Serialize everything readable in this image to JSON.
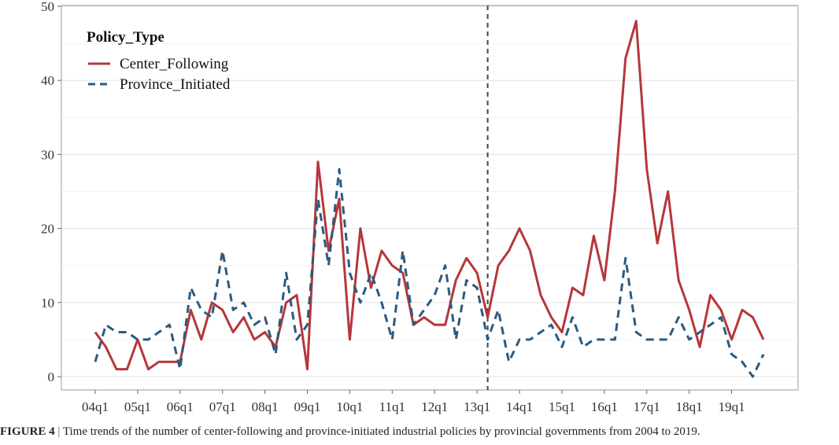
{
  "chart_data": {
    "type": "line",
    "title": "",
    "xlabel": "",
    "ylabel": "",
    "ylim": [
      0,
      50
    ],
    "yticks": [
      0,
      10,
      20,
      30,
      40,
      50
    ],
    "xtick_labels": [
      "04q1",
      "05q1",
      "06q1",
      "07q1",
      "08q1",
      "09q1",
      "10q1",
      "11q1",
      "12q1",
      "13q1",
      "14q1",
      "15q1",
      "16q1",
      "17q1",
      "18q1",
      "19q1"
    ],
    "x": [
      "04q1",
      "04q2",
      "04q3",
      "04q4",
      "05q1",
      "05q2",
      "05q3",
      "05q4",
      "06q1",
      "06q2",
      "06q3",
      "06q4",
      "07q1",
      "07q2",
      "07q3",
      "07q4",
      "08q1",
      "08q2",
      "08q3",
      "08q4",
      "09q1",
      "09q2",
      "09q3",
      "09q4",
      "10q1",
      "10q2",
      "10q3",
      "10q4",
      "11q1",
      "11q2",
      "11q3",
      "11q4",
      "12q1",
      "12q2",
      "12q3",
      "12q4",
      "13q1",
      "13q2",
      "13q3",
      "13q4",
      "14q1",
      "14q2",
      "14q3",
      "14q4",
      "15q1",
      "15q2",
      "15q3",
      "15q4",
      "16q1",
      "16q2",
      "16q3",
      "16q4",
      "17q1",
      "17q2",
      "17q3",
      "17q4",
      "18q1",
      "18q2",
      "18q3",
      "18q4",
      "19q1",
      "19q2",
      "19q3",
      "19q4"
    ],
    "vline": "13q2",
    "grid": true,
    "legend": {
      "title": "Policy_Type",
      "position": "top-left"
    },
    "series": [
      {
        "name": "Center_Following",
        "color": "#b5373a",
        "style": "solid",
        "values": [
          6,
          4,
          1,
          1,
          5,
          1,
          2,
          2,
          2,
          9,
          5,
          10,
          9,
          6,
          8,
          5,
          6,
          4,
          10,
          11,
          1,
          29,
          17,
          24,
          5,
          20,
          12,
          17,
          15,
          14,
          7,
          8,
          7,
          7,
          13,
          16,
          14,
          8,
          15,
          17,
          20,
          17,
          11,
          8,
          6,
          12,
          11,
          19,
          13,
          25,
          43,
          48,
          28,
          18,
          25,
          13,
          9,
          4,
          11,
          9,
          5,
          9,
          8,
          5
        ]
      },
      {
        "name": "Province_Initiated",
        "color": "#2c5a80",
        "style": "dashed",
        "values": [
          2,
          7,
          6,
          6,
          5,
          5,
          6,
          7,
          1,
          12,
          9,
          8,
          17,
          9,
          10,
          7,
          8,
          3,
          14,
          5,
          7,
          24,
          15,
          28,
          14,
          10,
          14,
          10,
          5,
          17,
          7,
          9,
          11,
          15,
          5,
          13,
          12,
          5,
          9,
          2,
          5,
          5,
          6,
          7,
          4,
          8,
          4,
          5,
          5,
          5,
          16,
          6,
          5,
          5,
          5,
          8,
          5,
          6,
          7,
          8,
          3,
          2,
          0,
          3
        ]
      }
    ]
  },
  "caption": {
    "figure_label": "FIGURE 4",
    "separator": "|",
    "text": "Time trends of the number of center-following and province-initiated industrial policies by provincial governments from 2004 to 2019."
  }
}
